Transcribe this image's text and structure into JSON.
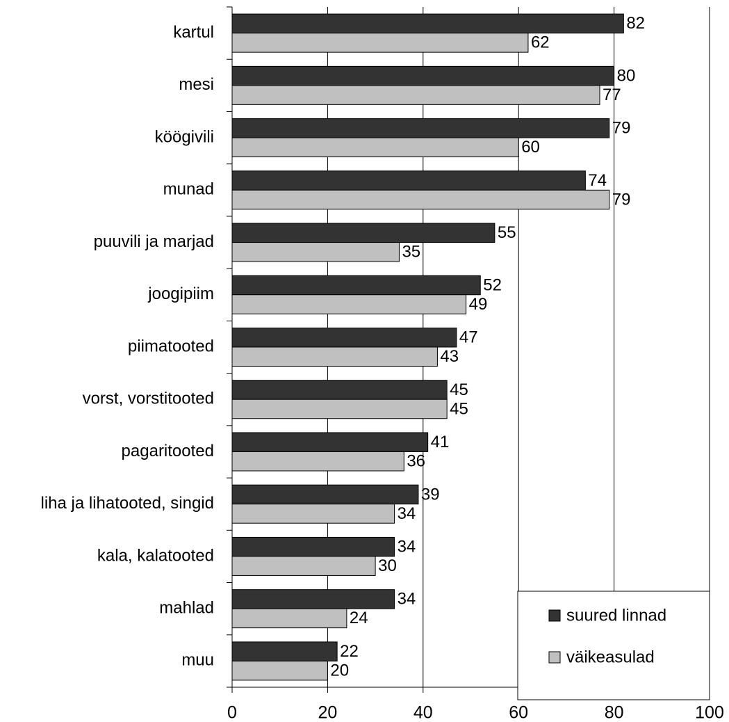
{
  "chart_data": {
    "type": "barh",
    "categories": [
      "kartul",
      "mesi",
      "köögivili",
      "munad",
      "puuvili ja marjad",
      "joogipiim",
      "piimatooted",
      "vorst, vorstitooted",
      "pagaritooted",
      "liha ja lihatooted, singid",
      "kala, kalatooted",
      "mahlad",
      "muu"
    ],
    "series": [
      {
        "name": "suured linnad",
        "color": "#333333",
        "values": [
          82,
          80,
          79,
          74,
          55,
          52,
          47,
          45,
          41,
          39,
          34,
          34,
          22
        ]
      },
      {
        "name": "väikeasulad",
        "color": "#c0c0c0",
        "values": [
          62,
          77,
          60,
          79,
          35,
          49,
          43,
          45,
          36,
          34,
          30,
          24,
          20
        ]
      }
    ],
    "xlim": [
      0,
      100
    ],
    "xticks": [
      0,
      20,
      40,
      60,
      80,
      100
    ],
    "grid": true,
    "legend": "bottom right"
  }
}
